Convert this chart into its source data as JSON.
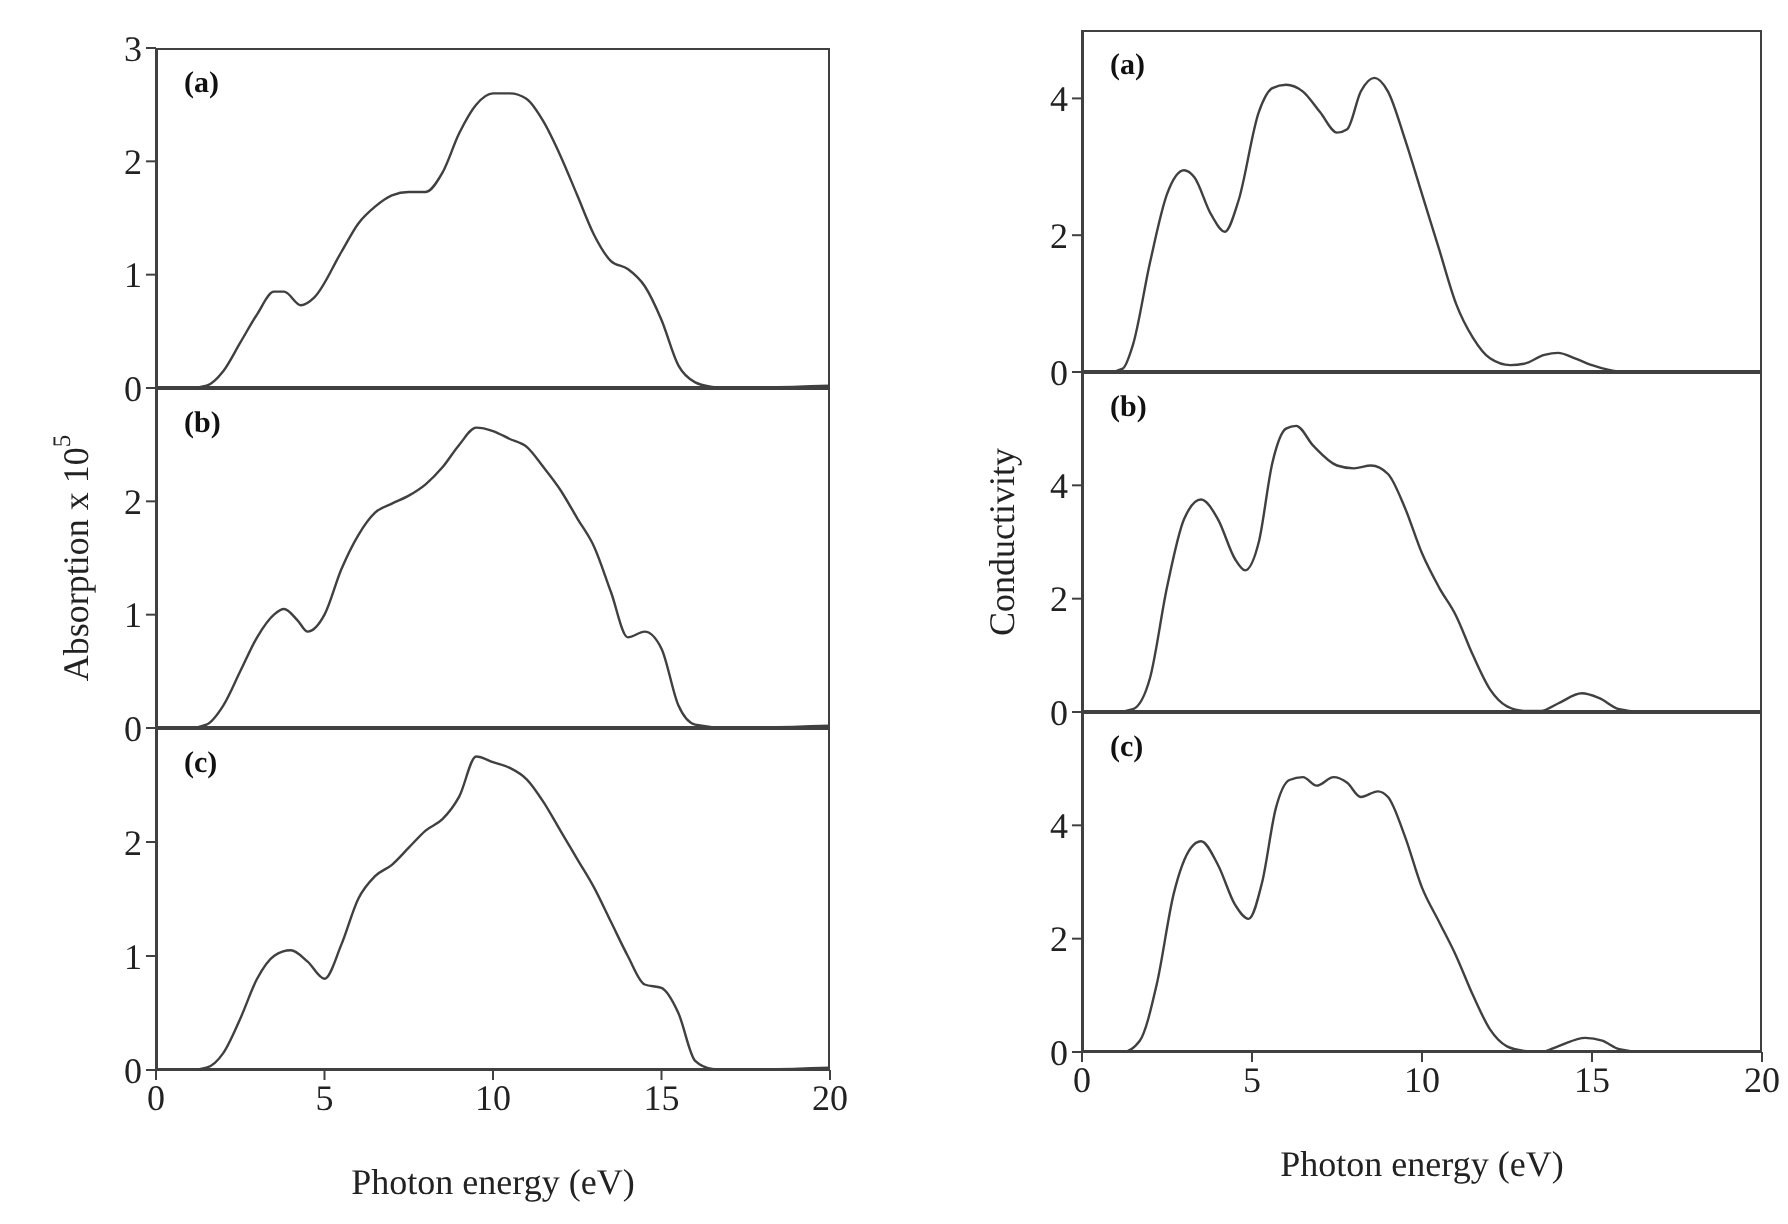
{
  "chart_data": [
    {
      "type": "line",
      "annotations": [
        "(a)"
      ],
      "color": "#404040",
      "xlim": [
        0,
        20
      ],
      "xticks": [
        0,
        5,
        10,
        15,
        20
      ],
      "ylim": [
        0,
        3
      ],
      "yticks": [
        0,
        1,
        2,
        3
      ],
      "tick_labels": "y",
      "x": [
        0,
        1,
        1.5,
        2,
        2.5,
        3,
        3.5,
        3.8,
        4.3,
        4.7,
        5.5,
        6,
        6.5,
        7,
        7.5,
        8,
        8.5,
        9,
        9.5,
        10,
        10.5,
        11,
        11.5,
        12,
        12.5,
        13,
        13.5,
        14,
        14.5,
        15,
        15.5,
        16,
        16.5,
        17,
        20
      ],
      "values": [
        0,
        0,
        0.02,
        0.15,
        0.4,
        0.65,
        0.85,
        0.85,
        0.73,
        0.8,
        1.2,
        1.45,
        1.6,
        1.7,
        1.73,
        1.73,
        1.9,
        2.25,
        2.5,
        2.6,
        2.6,
        2.55,
        2.35,
        2.05,
        1.7,
        1.35,
        1.12,
        1.05,
        0.9,
        0.6,
        0.2,
        0.05,
        0.01,
        0,
        0.02
      ]
    },
    {
      "type": "line",
      "annotations": [
        "(b)"
      ],
      "ylabel": "Absorption x 10$^{5}$",
      "color": "#404040",
      "xlim": [
        0,
        20
      ],
      "xticks": [
        0,
        5,
        10,
        15,
        20
      ],
      "ylim": [
        0,
        3
      ],
      "yticks": [
        0,
        1,
        2
      ],
      "tick_labels": "y",
      "x": [
        0,
        1,
        1.5,
        2,
        2.5,
        3,
        3.5,
        3.8,
        4.2,
        4.5,
        5,
        5.5,
        6,
        6.5,
        7,
        7.5,
        8,
        8.5,
        9,
        9.5,
        10,
        10.5,
        11,
        11.5,
        12,
        12.5,
        13,
        13.5,
        14,
        14.5,
        15,
        15.5,
        16,
        17,
        20
      ],
      "values": [
        0,
        0,
        0.03,
        0.2,
        0.5,
        0.8,
        1.0,
        1.05,
        0.95,
        0.85,
        1.0,
        1.4,
        1.7,
        1.9,
        1.98,
        2.05,
        2.15,
        2.3,
        2.5,
        2.65,
        2.62,
        2.55,
        2.48,
        2.3,
        2.1,
        1.85,
        1.6,
        1.2,
        0.8,
        0.85,
        0.7,
        0.2,
        0.03,
        0,
        0.02
      ]
    },
    {
      "type": "line",
      "annotations": [
        "(c)"
      ],
      "xlabel": "Photon energy (eV)",
      "color": "#404040",
      "xlim": [
        0,
        20
      ],
      "xticks": [
        0,
        5,
        10,
        15,
        20
      ],
      "ylim": [
        0,
        3
      ],
      "yticks": [
        0,
        1,
        2
      ],
      "x": [
        0,
        1,
        1.5,
        2,
        2.5,
        3,
        3.5,
        4,
        4.5,
        5,
        5.5,
        6,
        6.5,
        7,
        7.5,
        8,
        8.5,
        9,
        9.5,
        10,
        10.5,
        11,
        11.5,
        12,
        12.5,
        13,
        13.5,
        14,
        14.5,
        15,
        15.5,
        16,
        16.5,
        17,
        20
      ],
      "values": [
        0,
        0,
        0.02,
        0.15,
        0.45,
        0.8,
        1.0,
        1.05,
        0.95,
        0.8,
        1.1,
        1.5,
        1.7,
        1.8,
        1.95,
        2.1,
        2.2,
        2.4,
        2.75,
        2.7,
        2.65,
        2.55,
        2.35,
        2.1,
        1.85,
        1.6,
        1.3,
        1.0,
        0.75,
        0.72,
        0.5,
        0.08,
        0.01,
        0,
        0.02
      ]
    },
    {
      "type": "line",
      "annotations": [
        "(a)"
      ],
      "color": "#404040",
      "xlim": [
        0,
        20
      ],
      "xticks": [
        0,
        5,
        10,
        15,
        20
      ],
      "ylim": [
        0,
        5
      ],
      "yticks": [
        0,
        2,
        4
      ],
      "tick_labels": "y",
      "x": [
        0,
        0.8,
        1.2,
        1.5,
        2,
        2.5,
        3,
        3.3,
        3.8,
        4.2,
        4.6,
        5.2,
        5.6,
        6,
        6.5,
        7,
        7.5,
        7.8,
        8.2,
        8.6,
        9,
        9.5,
        10,
        10.5,
        11,
        11.5,
        12,
        12.6,
        13,
        13.6,
        14,
        14.5,
        15,
        15.5,
        16,
        20
      ],
      "values": [
        0,
        0,
        0.05,
        0.4,
        1.6,
        2.6,
        2.95,
        2.85,
        2.3,
        2.05,
        2.5,
        3.8,
        4.15,
        4.2,
        4.1,
        3.8,
        3.5,
        3.55,
        4.1,
        4.3,
        4.1,
        3.4,
        2.6,
        1.8,
        1.0,
        0.5,
        0.2,
        0.1,
        0.12,
        0.25,
        0.28,
        0.2,
        0.1,
        0.03,
        0,
        0
      ]
    },
    {
      "type": "line",
      "annotations": [
        "(b)"
      ],
      "ylabel": "Conductivity",
      "color": "#404040",
      "xlim": [
        0,
        20
      ],
      "xticks": [
        0,
        5,
        10,
        15,
        20
      ],
      "ylim": [
        0,
        6
      ],
      "yticks": [
        0,
        2,
        4
      ],
      "tick_labels": "y",
      "x": [
        0,
        1,
        1.5,
        2,
        2.5,
        3,
        3.5,
        4,
        4.5,
        4.8,
        5.2,
        5.6,
        6,
        6.3,
        6.8,
        7.5,
        8,
        8.5,
        9,
        9.5,
        10,
        10.5,
        11,
        11.5,
        12,
        12.5,
        13,
        13.5,
        14,
        14.7,
        15.2,
        15.8,
        16.5,
        20
      ],
      "values": [
        0,
        0,
        0.05,
        0.6,
        2.2,
        3.4,
        3.75,
        3.4,
        2.7,
        2.5,
        3.0,
        4.4,
        5.0,
        5.05,
        4.7,
        4.35,
        4.3,
        4.35,
        4.2,
        3.6,
        2.8,
        2.2,
        1.7,
        1.0,
        0.4,
        0.1,
        0.02,
        0.02,
        0.15,
        0.33,
        0.25,
        0.05,
        0,
        0
      ]
    },
    {
      "type": "line",
      "annotations": [
        "(c)"
      ],
      "xlabel": "Photon energy (eV)",
      "color": "#404040",
      "xlim": [
        0,
        20
      ],
      "xticks": [
        0,
        5,
        10,
        15,
        20
      ],
      "ylim": [
        0,
        6
      ],
      "yticks": [
        0,
        2,
        4
      ],
      "x": [
        0,
        1.2,
        1.7,
        2.2,
        2.7,
        3.2,
        3.5,
        4,
        4.5,
        4.9,
        5.3,
        5.7,
        6.1,
        6.5,
        6.9,
        7.4,
        7.8,
        8.2,
        8.7,
        9,
        9.5,
        10,
        10.5,
        11,
        11.5,
        12,
        12.5,
        13,
        13.5,
        14,
        14.8,
        15.3,
        15.8,
        16.5,
        20
      ],
      "values": [
        0,
        0,
        0.2,
        1.2,
        2.8,
        3.6,
        3.72,
        3.3,
        2.6,
        2.35,
        3.0,
        4.3,
        4.8,
        4.85,
        4.7,
        4.85,
        4.75,
        4.5,
        4.6,
        4.5,
        3.8,
        2.9,
        2.3,
        1.7,
        1.0,
        0.4,
        0.1,
        0.02,
        0,
        0.1,
        0.25,
        0.2,
        0.05,
        0,
        0
      ]
    }
  ]
}
